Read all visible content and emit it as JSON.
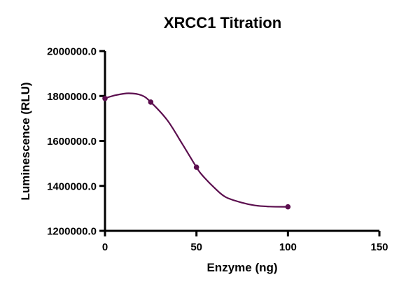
{
  "chart_data": {
    "type": "line",
    "title": "XRCC1 Titration",
    "xlabel": "Enzyme (ng)",
    "ylabel": "Luminescence (RLU)",
    "xlim": [
      0,
      150
    ],
    "ylim": [
      1200000,
      2000000
    ],
    "x_ticks": [
      0,
      50,
      100,
      150
    ],
    "x_tick_labels": [
      "0",
      "50",
      "100",
      "150"
    ],
    "y_ticks": [
      1200000,
      1400000,
      1600000,
      1800000,
      2000000
    ],
    "y_tick_labels": [
      "1200000.0",
      "1400000.0",
      "1600000.0",
      "1800000.0",
      "2000000.0"
    ],
    "grid": false,
    "color": "#5c0f4f",
    "points": [
      {
        "x": 0,
        "y": 1789000
      },
      {
        "x": 25,
        "y": 1773000
      },
      {
        "x": 50,
        "y": 1483000
      },
      {
        "x": 100,
        "y": 1307000
      }
    ],
    "fit_curve": [
      [
        0,
        1790000
      ],
      [
        6,
        1804000
      ],
      [
        13,
        1812000
      ],
      [
        20,
        1803000
      ],
      [
        25,
        1773000
      ],
      [
        34,
        1693000
      ],
      [
        42,
        1590000
      ],
      [
        50,
        1483000
      ],
      [
        53,
        1449000
      ],
      [
        60,
        1390000
      ],
      [
        66,
        1350000
      ],
      [
        75,
        1325000
      ],
      [
        82,
        1313000
      ],
      [
        90,
        1308000
      ],
      [
        100,
        1307000
      ]
    ]
  }
}
